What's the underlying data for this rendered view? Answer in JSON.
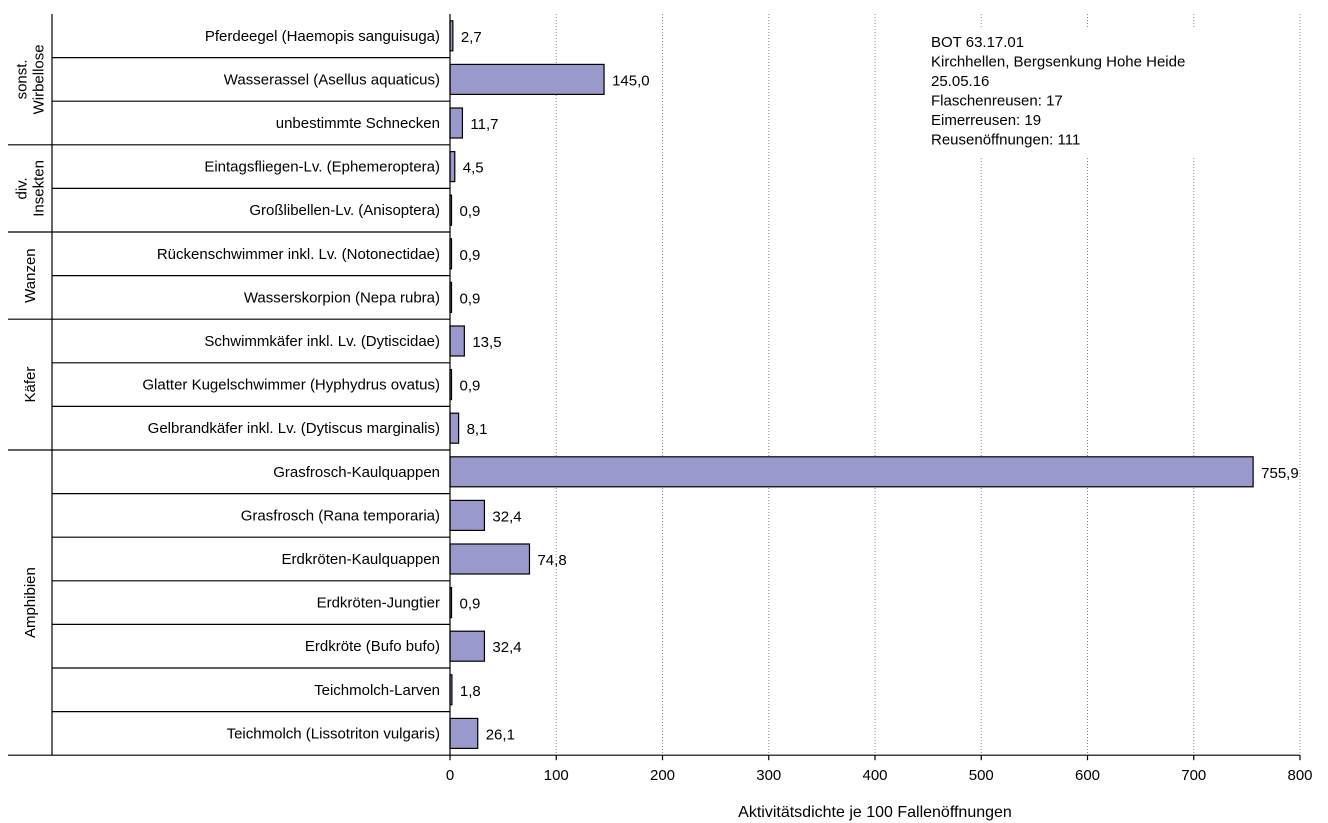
{
  "chart_data": {
    "type": "bar",
    "orientation": "horizontal",
    "bar_color": "#9999cc",
    "xlabel": "Aktivitätsdichte je 100 Fallenöffnungen",
    "xlim": [
      0,
      800
    ],
    "xticks": [
      0,
      100,
      200,
      300,
      400,
      500,
      600,
      700,
      800
    ],
    "grid": "vertical dotted lines",
    "groups": [
      {
        "name": [
          "sonst.",
          "Wirbellose"
        ],
        "start": 0,
        "end": 2
      },
      {
        "name": [
          "div.",
          "Insekten"
        ],
        "start": 3,
        "end": 4
      },
      {
        "name": [
          "Wanzen"
        ],
        "start": 5,
        "end": 6
      },
      {
        "name": [
          "Käfer"
        ],
        "start": 7,
        "end": 9
      },
      {
        "name": [
          "Amphibien"
        ],
        "start": 10,
        "end": 16
      }
    ],
    "categories": [
      "Pferdeegel (Haemopis sanguisuga)",
      "Wasserassel (Asellus aquaticus)",
      "unbestimmte Schnecken",
      "Eintagsfliegen-Lv. (Ephemeroptera)",
      "Großlibellen-Lv. (Anisoptera)",
      "Rückenschwimmer inkl. Lv. (Notonectidae)",
      "Wasserskorpion (Nepa rubra)",
      "Schwimmkäfer inkl. Lv. (Dytiscidae)",
      "Glatter Kugelschwimmer (Hyphydrus ovatus)",
      "Gelbrandkäfer inkl. Lv. (Dytiscus marginalis)",
      "Grasfrosch-Kaulquappen",
      "Grasfrosch (Rana temporaria)",
      "Erdkröten-Kaulquappen",
      "Erdkröten-Jungtier",
      "Erdkröte (Bufo bufo)",
      "Teichmolch-Larven",
      "Teichmolch (Lissotriton vulgaris)"
    ],
    "values": [
      2.7,
      145.0,
      11.7,
      4.5,
      0.9,
      0.9,
      0.9,
      13.5,
      0.9,
      8.1,
      755.9,
      32.4,
      74.8,
      0.9,
      32.4,
      1.8,
      26.1
    ],
    "value_labels": [
      "2,7",
      "145,0",
      "11,7",
      "4,5",
      "0,9",
      "0,9",
      "0,9",
      "13,5",
      "0,9",
      "8,1",
      "755,9",
      "32,4",
      "74,8",
      "0,9",
      "32,4",
      "1,8",
      "26,1"
    ],
    "info_box": [
      "BOT 63.17.01",
      "Kirchhellen, Bergsenkung Hohe Heide",
      "25.05.16",
      "Flaschenreusen: 17",
      "Eimerreusen: 19",
      "Reusenöffnungen: 111"
    ]
  }
}
